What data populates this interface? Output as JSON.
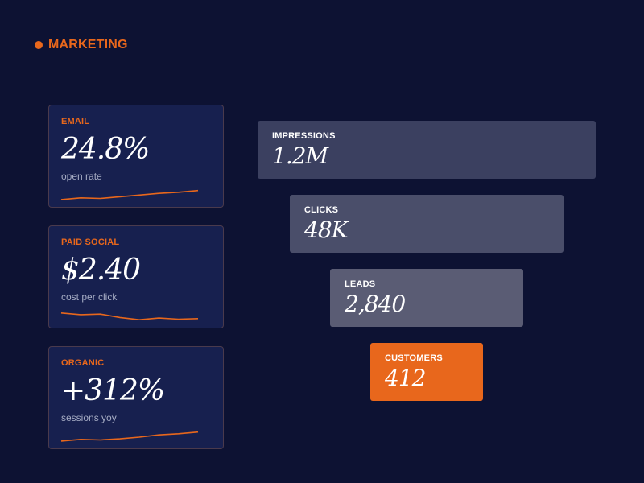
{
  "header": {
    "title": "MARKETING",
    "accent": "#e8671c",
    "dot_icon": "status-dot-icon"
  },
  "cards": [
    {
      "label": "EMAIL",
      "value": "24.8%",
      "sub": "open rate",
      "trend": [
        0.15,
        0.3,
        0.25,
        0.4,
        0.55,
        0.7,
        0.8,
        0.95
      ]
    },
    {
      "label": "PAID SOCIAL",
      "value": "$2.40",
      "sub": "cost per click",
      "trend": [
        0.8,
        0.65,
        0.7,
        0.4,
        0.2,
        0.35,
        0.25,
        0.3
      ]
    },
    {
      "label": "ORGANIC",
      "value": "+312%",
      "sub": "sessions yoy",
      "trend": [
        0.15,
        0.3,
        0.25,
        0.35,
        0.5,
        0.7,
        0.8,
        0.95
      ]
    }
  ],
  "funnel": [
    {
      "label": "IMPRESSIONS",
      "value": "1.2M",
      "color": "#3b4060"
    },
    {
      "label": "CLICKS",
      "value": "48K",
      "color": "#4a4e6a"
    },
    {
      "label": "LEADS",
      "value": "2,840",
      "color": "#5a5c74"
    },
    {
      "label": "CUSTOMERS",
      "value": "412",
      "color": "#e8671c"
    }
  ],
  "colors": {
    "background": "#0d1233",
    "card_background": "#17204f",
    "accent": "#e8671c",
    "muted_text": "#a6acc4"
  }
}
